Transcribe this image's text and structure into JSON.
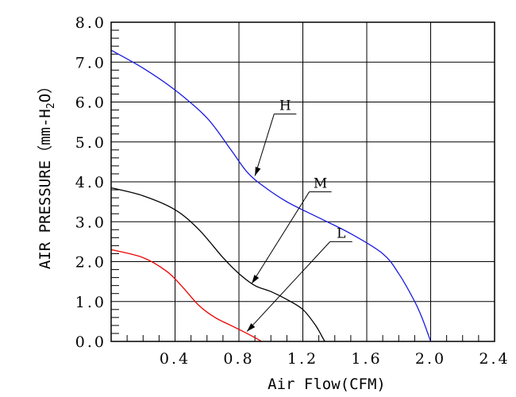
{
  "chart_data": {
    "type": "line",
    "title": "",
    "xlabel": "Air Flow(CFM)",
    "ylabel_main": "AIR PRESSURE（mm-H",
    "ylabel_sub": "2",
    "ylabel_end": "O）",
    "xlim": [
      0,
      2.4
    ],
    "ylim": [
      0,
      8.0
    ],
    "x_ticks": [
      0.4,
      0.8,
      1.2,
      1.6,
      2.0,
      2.4
    ],
    "x_tick_labels": [
      "0.4",
      "0.8",
      "1.2",
      "1.6",
      "2.0",
      "2.4"
    ],
    "y_ticks": [
      0,
      1,
      2,
      3,
      4,
      5,
      6,
      7,
      8
    ],
    "y_tick_labels": [
      "0.0",
      "1.0",
      "2.0",
      "3.0",
      "4.0",
      "5.0",
      "6.0",
      "7.0",
      "8.0"
    ],
    "grid": true,
    "series": [
      {
        "name": "H",
        "color": "#1a1adf",
        "points": [
          [
            0,
            7.3
          ],
          [
            0.2,
            6.85
          ],
          [
            0.4,
            6.3
          ],
          [
            0.6,
            5.6
          ],
          [
            0.75,
            4.8
          ],
          [
            0.85,
            4.25
          ],
          [
            0.95,
            3.9
          ],
          [
            1.1,
            3.5
          ],
          [
            1.3,
            3.1
          ],
          [
            1.5,
            2.7
          ],
          [
            1.7,
            2.2
          ],
          [
            1.8,
            1.7
          ],
          [
            1.9,
            1.0
          ],
          [
            1.95,
            0.55
          ],
          [
            2.0,
            0
          ]
        ],
        "label_point": [
          1.05,
          5.7
        ],
        "arrow_to": [
          0.9,
          4.15
        ]
      },
      {
        "name": "M",
        "color": "#000000",
        "points": [
          [
            0,
            3.85
          ],
          [
            0.2,
            3.65
          ],
          [
            0.4,
            3.3
          ],
          [
            0.55,
            2.8
          ],
          [
            0.7,
            2.1
          ],
          [
            0.8,
            1.7
          ],
          [
            0.9,
            1.4
          ],
          [
            1.0,
            1.25
          ],
          [
            1.1,
            1.05
          ],
          [
            1.2,
            0.8
          ],
          [
            1.28,
            0.4
          ],
          [
            1.33,
            0.05
          ],
          [
            1.34,
            0
          ]
        ],
        "label_point": [
          1.27,
          3.75
        ],
        "arrow_to": [
          0.88,
          1.45
        ]
      },
      {
        "name": "L",
        "color": "#ee0000",
        "points": [
          [
            0,
            2.3
          ],
          [
            0.2,
            2.1
          ],
          [
            0.35,
            1.75
          ],
          [
            0.45,
            1.35
          ],
          [
            0.55,
            0.9
          ],
          [
            0.65,
            0.6
          ],
          [
            0.75,
            0.4
          ],
          [
            0.85,
            0.2
          ],
          [
            0.92,
            0.05
          ],
          [
            0.94,
            0
          ]
        ],
        "label_point": [
          1.4,
          2.5
        ],
        "arrow_to": [
          0.85,
          0.25
        ]
      }
    ]
  }
}
